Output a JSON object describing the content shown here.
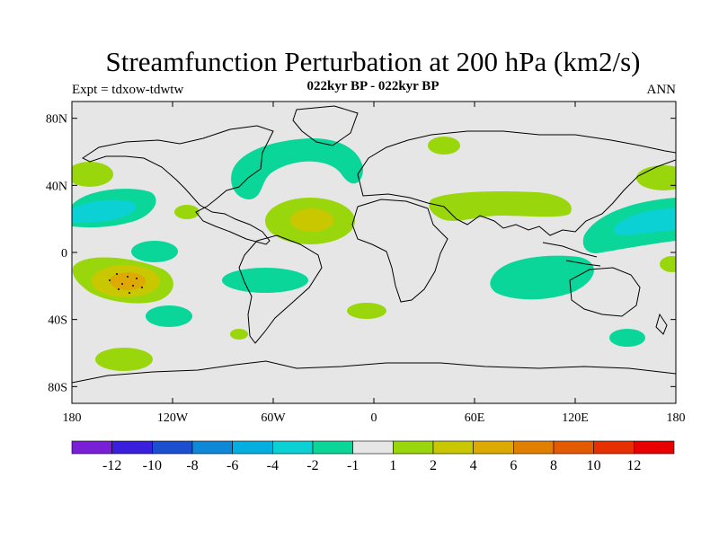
{
  "title": "Streamfunction Perturbation at 200 hPa (km2/s)",
  "left_string": "Expt = tdxow-tdwtw",
  "center_string": "022kyr BP - 022kyr BP",
  "right_string": "ANN",
  "lat_ticks": [
    {
      "value": 80,
      "label": "80N"
    },
    {
      "value": 40,
      "label": "40N"
    },
    {
      "value": 0,
      "label": "0"
    },
    {
      "value": -40,
      "label": "40S"
    },
    {
      "value": -80,
      "label": "80S"
    }
  ],
  "lon_ticks": [
    {
      "value": -180,
      "label": "180"
    },
    {
      "value": -120,
      "label": "120W"
    },
    {
      "value": -60,
      "label": "60W"
    },
    {
      "value": 0,
      "label": "0"
    },
    {
      "value": 60,
      "label": "60E"
    },
    {
      "value": 120,
      "label": "120E"
    },
    {
      "value": 180,
      "label": "180"
    }
  ],
  "colorbar": {
    "colors": [
      "#7a1fd8",
      "#3a1fdd",
      "#1b4fd0",
      "#0f88d8",
      "#05aee0",
      "#0bd0d4",
      "#0ad69a",
      "#e6e6e6",
      "#9ad60c",
      "#c9c800",
      "#dcaa00",
      "#e07f00",
      "#e45a00",
      "#e73000",
      "#e80000"
    ],
    "labels": [
      "-12",
      "-10",
      "-8",
      "-6",
      "-4",
      "-2",
      "-1",
      "1",
      "2",
      "4",
      "6",
      "8",
      "10",
      "12"
    ]
  },
  "colors": {
    "background": "#e6e6e6",
    "neg1": "#0ad69a",
    "neg2": "#0bd0d4",
    "pos1": "#9ad60c",
    "pos2": "#c9c800",
    "pos3": "#dcaa00"
  }
}
